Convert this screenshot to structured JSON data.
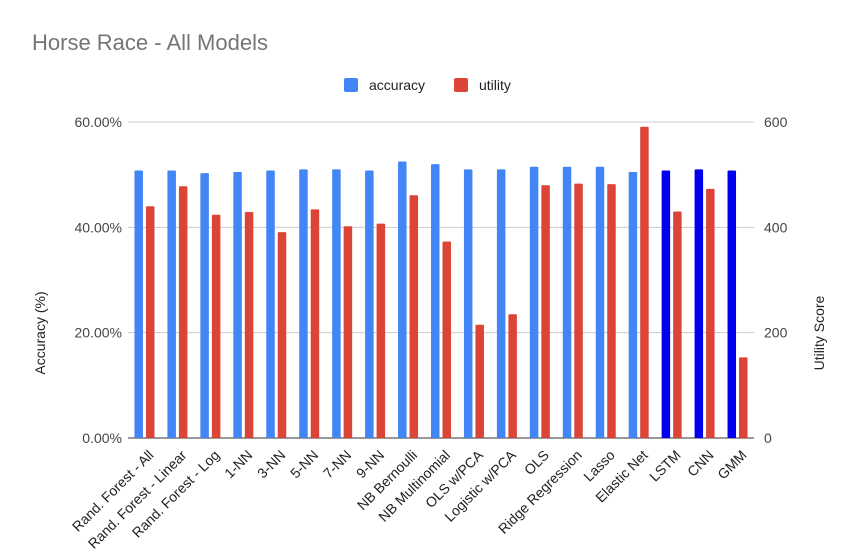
{
  "chart_data": {
    "type": "bar",
    "title": "Horse Race - All Models",
    "legend_position": "top-center",
    "grid": true,
    "categories": [
      "Rand. Forest - All",
      "Rand. Forest - Linear",
      "Rand. Forest - Log",
      "1-NN",
      "3-NN",
      "5-NN",
      "7-NN",
      "9-NN",
      "NB Bernoulli",
      "NB Multinomial",
      "OLS w/PCA",
      "Logistic w/PCA",
      "OLS",
      "Ridge Regression",
      "Lasso",
      "Elastic Net",
      "LSTM",
      "CNN",
      "GMM"
    ],
    "left_axis": {
      "label": "Accuracy (%)",
      "ylim": [
        0,
        60
      ],
      "tick_values": [
        0,
        20,
        40,
        60
      ],
      "tick_labels": [
        "0.00%",
        "20.00%",
        "40.00%",
        "60.00%"
      ]
    },
    "right_axis": {
      "label": "Utility Score",
      "ylim": [
        0,
        600
      ],
      "tick_values": [
        0,
        200,
        400,
        600
      ],
      "tick_labels": [
        "0",
        "200",
        "400",
        "600"
      ]
    },
    "series": [
      {
        "name": "accuracy",
        "axis": "left",
        "color": "#4285F4",
        "values": [
          50.8,
          50.8,
          50.3,
          50.5,
          50.8,
          51.0,
          51.0,
          50.8,
          52.5,
          52.0,
          51.0,
          51.0,
          51.5,
          51.5,
          51.5,
          50.5,
          50.8,
          51.0,
          50.8
        ],
        "point_colors": [
          "#4285F4",
          "#4285F4",
          "#4285F4",
          "#4285F4",
          "#4285F4",
          "#4285F4",
          "#4285F4",
          "#4285F4",
          "#4285F4",
          "#4285F4",
          "#4285F4",
          "#4285F4",
          "#4285F4",
          "#4285F4",
          "#4285F4",
          "#4285F4",
          "#0000EE",
          "#0000EE",
          "#0000EE"
        ]
      },
      {
        "name": "utility",
        "axis": "right",
        "color": "#DB4437",
        "values": [
          440,
          478,
          424,
          429,
          391,
          434,
          402,
          407,
          461,
          373,
          215,
          235,
          480,
          483,
          482,
          591,
          430,
          473,
          153
        ]
      }
    ]
  }
}
